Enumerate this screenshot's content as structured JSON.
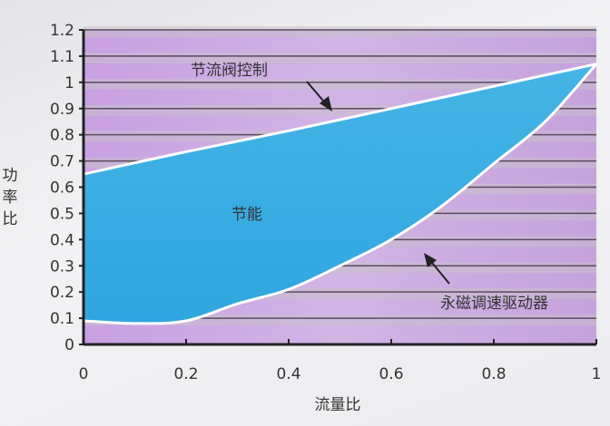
{
  "chart_data": {
    "type": "area",
    "xlabel": "流量比",
    "ylabel": "功率比",
    "xlim": [
      0,
      1
    ],
    "ylim": [
      0,
      1.2
    ],
    "xticks": [
      "0",
      "0.2",
      "0.4",
      "0.6",
      "0.8",
      "1"
    ],
    "yticks": [
      "0",
      "0.1",
      "0.2",
      "0.3",
      "0.4",
      "0.5",
      "0.6",
      "0.7",
      "0.8",
      "0.9",
      "1",
      "1.1",
      "1.2"
    ],
    "grid": "horizontal",
    "series": [
      {
        "name": "节流阀控制",
        "x": [
          0,
          0.2,
          0.4,
          0.6,
          0.8,
          1
        ],
        "y": [
          0.65,
          0.735,
          0.815,
          0.9,
          0.985,
          1.07
        ]
      },
      {
        "name": "永磁调速驱动器",
        "x": [
          0,
          0.1,
          0.2,
          0.3,
          0.4,
          0.5,
          0.6,
          0.7,
          0.8,
          0.9,
          1
        ],
        "y": [
          0.09,
          0.08,
          0.09,
          0.155,
          0.21,
          0.3,
          0.4,
          0.53,
          0.69,
          0.85,
          1.07
        ]
      }
    ],
    "fill_label": "节能",
    "colors": {
      "fill": "#3aaee0",
      "background": "#c9a6e0",
      "curve": "#ffffff"
    }
  }
}
